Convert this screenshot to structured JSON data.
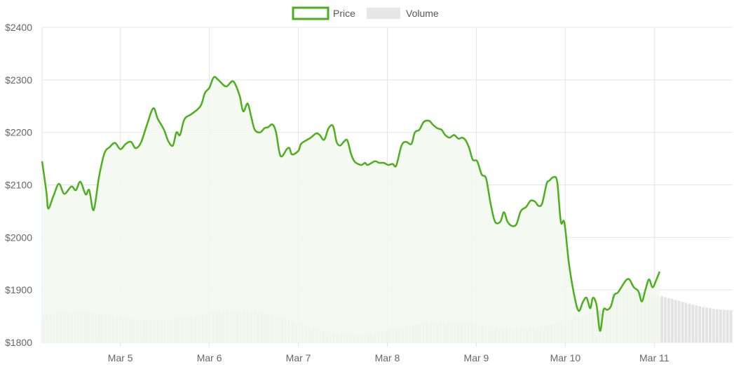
{
  "chart_data": {
    "type": "line",
    "legend": {
      "position": "top",
      "items": [
        {
          "label": "Price",
          "color": "#4caf1c"
        },
        {
          "label": "Volume",
          "color": "#e6e6e6"
        }
      ]
    },
    "grid": true,
    "ylim": [
      1800,
      2400
    ],
    "y_ticks": [
      "$2400",
      "$2300",
      "$2200",
      "$2100",
      "$2000",
      "$1900",
      "$1800"
    ],
    "x_ticks": [
      "Mar 5",
      "Mar 6",
      "Mar 7",
      "Mar 8",
      "Mar 9",
      "Mar 10",
      "Mar 11"
    ],
    "x_range": [
      4.12,
      11.88
    ],
    "series": [
      {
        "name": "Price",
        "color": "#4caf1c",
        "fill": "#f2f9ee",
        "points": [
          [
            4.12,
            2145
          ],
          [
            4.17,
            2085
          ],
          [
            4.19,
            2055
          ],
          [
            4.25,
            2080
          ],
          [
            4.31,
            2102
          ],
          [
            4.37,
            2083
          ],
          [
            4.45,
            2097
          ],
          [
            4.5,
            2090
          ],
          [
            4.55,
            2106
          ],
          [
            4.61,
            2082
          ],
          [
            4.65,
            2090
          ],
          [
            4.7,
            2052
          ],
          [
            4.76,
            2115
          ],
          [
            4.82,
            2160
          ],
          [
            4.88,
            2172
          ],
          [
            4.94,
            2180
          ],
          [
            5.0,
            2168
          ],
          [
            5.06,
            2178
          ],
          [
            5.12,
            2182
          ],
          [
            5.17,
            2170
          ],
          [
            5.23,
            2180
          ],
          [
            5.3,
            2215
          ],
          [
            5.37,
            2246
          ],
          [
            5.42,
            2226
          ],
          [
            5.49,
            2205
          ],
          [
            5.54,
            2183
          ],
          [
            5.59,
            2175
          ],
          [
            5.63,
            2200
          ],
          [
            5.67,
            2195
          ],
          [
            5.72,
            2225
          ],
          [
            5.8,
            2235
          ],
          [
            5.9,
            2250
          ],
          [
            5.95,
            2275
          ],
          [
            6.0,
            2285
          ],
          [
            6.05,
            2305
          ],
          [
            6.1,
            2300
          ],
          [
            6.16,
            2290
          ],
          [
            6.2,
            2288
          ],
          [
            6.27,
            2297
          ],
          [
            6.34,
            2270
          ],
          [
            6.38,
            2240
          ],
          [
            6.43,
            2255
          ],
          [
            6.47,
            2230
          ],
          [
            6.51,
            2205
          ],
          [
            6.57,
            2200
          ],
          [
            6.62,
            2208
          ],
          [
            6.66,
            2210
          ],
          [
            6.71,
            2215
          ],
          [
            6.75,
            2200
          ],
          [
            6.8,
            2155
          ],
          [
            6.87,
            2168
          ],
          [
            6.9,
            2170
          ],
          [
            6.93,
            2158
          ],
          [
            7.0,
            2165
          ],
          [
            7.03,
            2178
          ],
          [
            7.09,
            2185
          ],
          [
            7.14,
            2190
          ],
          [
            7.2,
            2198
          ],
          [
            7.24,
            2195
          ],
          [
            7.29,
            2186
          ],
          [
            7.34,
            2208
          ],
          [
            7.39,
            2212
          ],
          [
            7.43,
            2182
          ],
          [
            7.47,
            2175
          ],
          [
            7.51,
            2182
          ],
          [
            7.55,
            2185
          ],
          [
            7.59,
            2160
          ],
          [
            7.63,
            2145
          ],
          [
            7.67,
            2140
          ],
          [
            7.71,
            2138
          ],
          [
            7.75,
            2142
          ],
          [
            7.78,
            2138
          ],
          [
            7.86,
            2145
          ],
          [
            7.91,
            2142
          ],
          [
            7.96,
            2142
          ],
          [
            8.01,
            2138
          ],
          [
            8.06,
            2140
          ],
          [
            8.1,
            2137
          ],
          [
            8.16,
            2175
          ],
          [
            8.21,
            2182
          ],
          [
            8.27,
            2178
          ],
          [
            8.31,
            2200
          ],
          [
            8.36,
            2205
          ],
          [
            8.41,
            2220
          ],
          [
            8.47,
            2222
          ],
          [
            8.51,
            2215
          ],
          [
            8.56,
            2208
          ],
          [
            8.61,
            2205
          ],
          [
            8.65,
            2195
          ],
          [
            8.7,
            2190
          ],
          [
            8.75,
            2195
          ],
          [
            8.8,
            2188
          ],
          [
            8.84,
            2190
          ],
          [
            8.88,
            2185
          ],
          [
            8.92,
            2170
          ],
          [
            8.96,
            2148
          ],
          [
            9.01,
            2145
          ],
          [
            9.06,
            2120
          ],
          [
            9.11,
            2112
          ],
          [
            9.16,
            2065
          ],
          [
            9.21,
            2030
          ],
          [
            9.27,
            2030
          ],
          [
            9.31,
            2048
          ],
          [
            9.35,
            2030
          ],
          [
            9.4,
            2022
          ],
          [
            9.45,
            2025
          ],
          [
            9.5,
            2050
          ],
          [
            9.56,
            2058
          ],
          [
            9.61,
            2070
          ],
          [
            9.66,
            2068
          ],
          [
            9.7,
            2060
          ],
          [
            9.74,
            2065
          ],
          [
            9.79,
            2102
          ],
          [
            9.82,
            2108
          ],
          [
            9.87,
            2115
          ],
          [
            9.91,
            2105
          ],
          [
            9.95,
            2030
          ],
          [
            9.99,
            2028
          ],
          [
            10.04,
            1952
          ],
          [
            10.1,
            1890
          ],
          [
            10.15,
            1860
          ],
          [
            10.2,
            1878
          ],
          [
            10.24,
            1885
          ],
          [
            10.28,
            1865
          ],
          [
            10.31,
            1885
          ],
          [
            10.35,
            1872
          ],
          [
            10.39,
            1822
          ],
          [
            10.43,
            1862
          ],
          [
            10.47,
            1862
          ],
          [
            10.51,
            1868
          ],
          [
            10.55,
            1890
          ],
          [
            10.59,
            1895
          ],
          [
            10.63,
            1905
          ],
          [
            10.68,
            1918
          ],
          [
            10.72,
            1920
          ],
          [
            10.77,
            1905
          ],
          [
            10.82,
            1898
          ],
          [
            10.86,
            1878
          ],
          [
            10.9,
            1900
          ],
          [
            10.94,
            1920
          ],
          [
            10.98,
            1905
          ],
          [
            11.02,
            1918
          ],
          [
            11.06,
            1935
          ]
        ]
      }
    ],
    "volume_note": "Volume shown as faint bars near chart bottom"
  }
}
